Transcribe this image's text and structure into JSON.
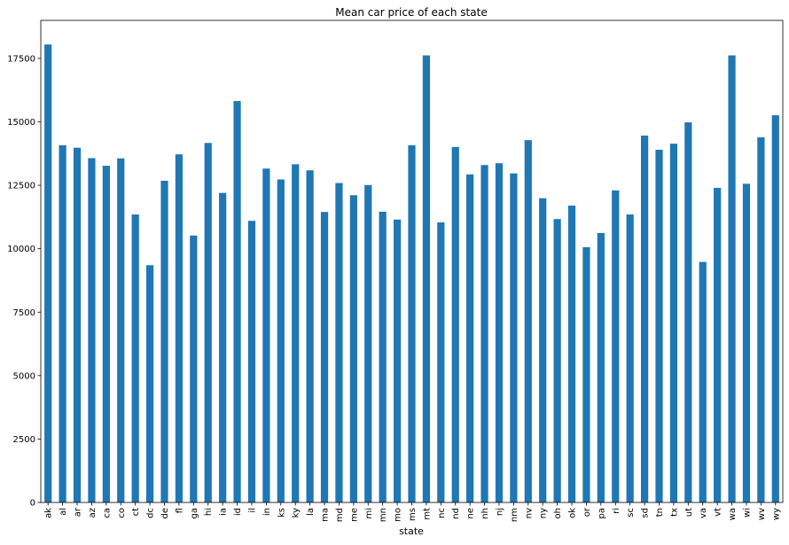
{
  "chart_data": {
    "type": "bar",
    "title": "Mean car price of each state",
    "xlabel": "state",
    "ylabel": "",
    "ylim": [
      0,
      19000
    ],
    "yticks": [
      0,
      2500,
      5000,
      7500,
      10000,
      12500,
      15000,
      17500
    ],
    "grid": false,
    "legend": "none",
    "bar_color": "#1f77b4",
    "categories": [
      "ak",
      "al",
      "ar",
      "az",
      "ca",
      "co",
      "ct",
      "dc",
      "de",
      "fl",
      "ga",
      "hi",
      "ia",
      "id",
      "il",
      "in",
      "ks",
      "ky",
      "la",
      "ma",
      "md",
      "me",
      "mi",
      "mn",
      "mo",
      "ms",
      "mt",
      "nc",
      "nd",
      "ne",
      "nh",
      "nj",
      "nm",
      "nv",
      "ny",
      "oh",
      "ok",
      "or",
      "pa",
      "ri",
      "sc",
      "sd",
      "tn",
      "tx",
      "ut",
      "va",
      "vt",
      "wa",
      "wi",
      "wv",
      "wy"
    ],
    "values": [
      18050,
      14080,
      13980,
      13570,
      13270,
      13560,
      11350,
      9350,
      12680,
      13720,
      10520,
      14170,
      12200,
      15820,
      11100,
      13160,
      12730,
      13330,
      13090,
      11450,
      12590,
      12110,
      12510,
      11460,
      11150,
      14080,
      17620,
      11040,
      14010,
      12930,
      13300,
      13370,
      12970,
      14280,
      11990,
      11170,
      11700,
      10060,
      10620,
      12300,
      11350,
      14460,
      13900,
      14140,
      14980,
      9480,
      12400,
      17620,
      12560,
      14390,
      15260
    ]
  }
}
